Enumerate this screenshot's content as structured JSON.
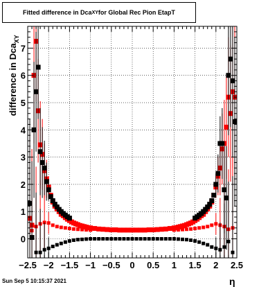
{
  "title": {
    "text": "Fitted difference in Dca",
    "sub": "XY",
    "suffix": " for Global Rec Pion EtapT"
  },
  "timestamp": "Sun Sep  5 10:15:37 2021",
  "chart_data": {
    "type": "scatter",
    "xlabel": "η",
    "ylabel": "difference in Dca",
    "ylabel_sub": "XY",
    "xlim": [
      -2.5,
      2.5
    ],
    "ylim": [
      -0.7,
      7.8
    ],
    "x_ticks": [
      "−2.5",
      "−2",
      "−1.5",
      "−1",
      "−0.5",
      "0",
      "0.5",
      "1",
      "1.5",
      "2",
      "2.5"
    ],
    "y_ticks": [
      "0",
      "1",
      "2",
      "3",
      "4",
      "5",
      "6",
      "7"
    ],
    "grid": true,
    "series": [
      {
        "color": "#ff0000",
        "marker": "square-large",
        "points": [
          [
            -2.45,
            0.75
          ],
          [
            -2.4,
            0.5
          ],
          [
            -2.35,
            6.0
          ],
          [
            -2.3,
            7.25
          ],
          [
            -2.25,
            4.7
          ],
          [
            -2.2,
            3.45
          ],
          [
            -2.15,
            3.1
          ],
          [
            -2.1,
            2.5
          ],
          [
            -2.05,
            2.2
          ],
          [
            -2.0,
            1.9
          ],
          [
            -1.95,
            1.6
          ],
          [
            -1.9,
            1.35
          ],
          [
            -1.85,
            1.2
          ],
          [
            -1.8,
            1.1
          ],
          [
            -1.75,
            1.0
          ],
          [
            -1.7,
            0.9
          ],
          [
            -1.65,
            0.85
          ],
          [
            -1.6,
            0.78
          ],
          [
            -1.55,
            0.72
          ],
          [
            -1.5,
            0.67
          ],
          [
            -1.45,
            0.62
          ],
          [
            -1.4,
            0.58
          ],
          [
            -1.35,
            0.55
          ],
          [
            -1.3,
            0.52
          ],
          [
            -1.25,
            0.49
          ],
          [
            -1.2,
            0.47
          ],
          [
            -1.15,
            0.45
          ],
          [
            -1.1,
            0.43
          ],
          [
            -1.05,
            0.41
          ],
          [
            -1.0,
            0.4
          ],
          [
            -0.9,
            0.38
          ],
          [
            -0.8,
            0.36
          ],
          [
            -0.7,
            0.35
          ],
          [
            -0.6,
            0.34
          ],
          [
            -0.5,
            0.33
          ],
          [
            -0.4,
            0.33
          ],
          [
            -0.3,
            0.32
          ],
          [
            -0.2,
            0.32
          ],
          [
            -0.1,
            0.32
          ],
          [
            0.0,
            0.32
          ],
          [
            0.1,
            0.32
          ],
          [
            0.2,
            0.32
          ],
          [
            0.3,
            0.32
          ],
          [
            0.4,
            0.33
          ],
          [
            0.5,
            0.33
          ],
          [
            0.6,
            0.34
          ],
          [
            0.7,
            0.35
          ],
          [
            0.8,
            0.36
          ],
          [
            0.9,
            0.38
          ],
          [
            1.0,
            0.4
          ],
          [
            1.05,
            0.41
          ],
          [
            1.1,
            0.43
          ],
          [
            1.15,
            0.45
          ],
          [
            1.2,
            0.47
          ],
          [
            1.25,
            0.49
          ],
          [
            1.3,
            0.52
          ],
          [
            1.35,
            0.55
          ],
          [
            1.4,
            0.58
          ],
          [
            1.45,
            0.62
          ],
          [
            1.5,
            0.67
          ],
          [
            1.55,
            0.72
          ],
          [
            1.6,
            0.78
          ],
          [
            1.65,
            0.85
          ],
          [
            1.7,
            0.9
          ],
          [
            1.75,
            1.0
          ],
          [
            1.8,
            1.1
          ],
          [
            1.85,
            1.2
          ],
          [
            1.9,
            1.35
          ],
          [
            1.95,
            1.6
          ],
          [
            2.0,
            1.9
          ],
          [
            2.05,
            2.3
          ],
          [
            2.1,
            2.6
          ],
          [
            2.15,
            3.3
          ],
          [
            2.2,
            3.5
          ],
          [
            2.25,
            4.1
          ],
          [
            2.3,
            5.2
          ],
          [
            2.35,
            4.6
          ],
          [
            2.4,
            5.4
          ],
          [
            2.45,
            5.2
          ]
        ]
      },
      {
        "color": "#ff0000",
        "marker": "square-small",
        "points": [
          [
            -2.4,
            0.3
          ],
          [
            -2.3,
            0.45
          ],
          [
            -2.2,
            0.55
          ],
          [
            -2.1,
            0.6
          ],
          [
            -2.0,
            0.58
          ],
          [
            -1.9,
            0.5
          ],
          [
            -1.8,
            0.45
          ],
          [
            -1.7,
            0.42
          ],
          [
            -1.6,
            0.4
          ],
          [
            -1.5,
            0.38
          ],
          [
            -1.4,
            0.36
          ],
          [
            -1.3,
            0.35
          ],
          [
            -1.2,
            0.34
          ],
          [
            -1.1,
            0.33
          ],
          [
            -1.0,
            0.32
          ],
          [
            1.0,
            0.32
          ],
          [
            1.1,
            0.33
          ],
          [
            1.2,
            0.34
          ],
          [
            1.3,
            0.35
          ],
          [
            1.4,
            0.36
          ],
          [
            1.5,
            0.38
          ],
          [
            1.6,
            0.4
          ],
          [
            1.7,
            0.42
          ],
          [
            1.8,
            0.45
          ],
          [
            1.9,
            0.5
          ],
          [
            2.0,
            0.55
          ],
          [
            2.1,
            0.5
          ],
          [
            2.2,
            0.45
          ],
          [
            2.3,
            0.35
          ],
          [
            2.4,
            0.4
          ]
        ]
      },
      {
        "color": "#000000",
        "marker": "square-large",
        "points": [
          [
            -2.45,
            1.3
          ],
          [
            -2.4,
            0.05
          ],
          [
            -2.35,
            4.0
          ],
          [
            -2.3,
            5.4
          ],
          [
            -2.25,
            6.3
          ],
          [
            -2.2,
            3.2
          ],
          [
            -2.15,
            2.8
          ],
          [
            -2.1,
            2.6
          ],
          [
            -2.05,
            2.1
          ],
          [
            -2.0,
            1.8
          ],
          [
            -1.95,
            1.55
          ],
          [
            -1.9,
            1.4
          ],
          [
            -1.85,
            1.27
          ],
          [
            -1.8,
            1.17
          ],
          [
            -1.75,
            1.08
          ],
          [
            -1.7,
            1.0
          ],
          [
            -1.65,
            0.93
          ],
          [
            -1.6,
            0.87
          ],
          [
            -1.55,
            0.81
          ],
          [
            -1.5,
            0.76
          ],
          [
            1.5,
            0.76
          ],
          [
            1.55,
            0.81
          ],
          [
            1.6,
            0.87
          ],
          [
            1.65,
            0.93
          ],
          [
            1.7,
            1.0
          ],
          [
            1.75,
            1.08
          ],
          [
            1.8,
            1.17
          ],
          [
            1.85,
            1.27
          ],
          [
            1.9,
            1.4
          ],
          [
            1.95,
            1.6
          ],
          [
            2.0,
            2.0
          ],
          [
            2.05,
            2.4
          ],
          [
            2.1,
            3.5
          ],
          [
            2.15,
            3.5
          ],
          [
            2.2,
            1.8
          ],
          [
            2.25,
            1.5
          ],
          [
            2.3,
            6.0
          ],
          [
            2.35,
            6.6
          ],
          [
            2.4,
            5.8
          ],
          [
            2.45,
            4.3
          ]
        ]
      },
      {
        "color": "#000000",
        "marker": "square-small",
        "points": [
          [
            -2.3,
            -0.5
          ],
          [
            -2.2,
            -0.5
          ],
          [
            -2.1,
            -0.4
          ],
          [
            -2.0,
            -0.35
          ],
          [
            -1.9,
            -0.28
          ],
          [
            -1.8,
            -0.22
          ],
          [
            -1.7,
            -0.17
          ],
          [
            -1.6,
            -0.12
          ],
          [
            -1.5,
            -0.08
          ],
          [
            -1.4,
            -0.05
          ],
          [
            -1.3,
            -0.03
          ],
          [
            -1.2,
            -0.02
          ],
          [
            -1.1,
            -0.01
          ],
          [
            -1.0,
            0.0
          ],
          [
            -0.9,
            0.0
          ],
          [
            -0.8,
            0.0
          ],
          [
            -0.7,
            0.0
          ],
          [
            -0.6,
            0.0
          ],
          [
            -0.5,
            0.0
          ],
          [
            -0.4,
            0.0
          ],
          [
            -0.3,
            0.0
          ],
          [
            -0.2,
            0.0
          ],
          [
            -0.1,
            0.0
          ],
          [
            0.0,
            0.0
          ],
          [
            0.1,
            0.0
          ],
          [
            0.2,
            0.0
          ],
          [
            0.3,
            0.0
          ],
          [
            0.4,
            0.0
          ],
          [
            0.5,
            0.0
          ],
          [
            0.6,
            0.0
          ],
          [
            0.7,
            0.0
          ],
          [
            0.8,
            0.0
          ],
          [
            0.9,
            0.0
          ],
          [
            1.0,
            0.0
          ],
          [
            1.1,
            -0.01
          ],
          [
            1.2,
            -0.02
          ],
          [
            1.3,
            -0.03
          ],
          [
            1.4,
            -0.05
          ],
          [
            1.5,
            -0.08
          ],
          [
            1.6,
            -0.12
          ],
          [
            1.7,
            -0.17
          ],
          [
            1.8,
            -0.22
          ],
          [
            1.9,
            -0.3
          ],
          [
            2.0,
            -0.35
          ],
          [
            2.1,
            -0.4
          ],
          [
            2.2,
            -0.3
          ],
          [
            2.3,
            -0.1
          ],
          [
            2.4,
            -0.5
          ]
        ]
      }
    ]
  }
}
